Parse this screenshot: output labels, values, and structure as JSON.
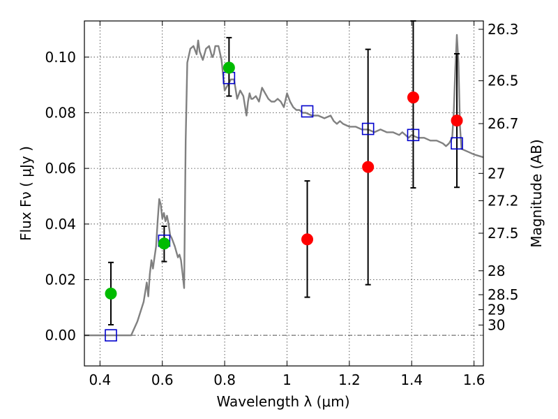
{
  "chart_data": {
    "type": "scatter",
    "xlabel": "Wavelength  λ (μm)",
    "ylabel": "Flux  Fν  ( μJy )",
    "ylabel_right": "Magnitude (AB)",
    "xlim": [
      0.35,
      1.63
    ],
    "ylim": [
      -0.011,
      0.113
    ],
    "x_ticks": [
      0.4,
      0.6,
      0.8,
      1.0,
      1.2,
      1.4,
      1.6
    ],
    "x_tick_labels": [
      "0.4",
      "0.6",
      "0.8",
      "1",
      "1.2",
      "1.4",
      "1.6"
    ],
    "y_ticks": [
      0.0,
      0.02,
      0.04,
      0.06,
      0.08,
      0.1
    ],
    "y_tick_labels": [
      "0.00",
      "0.02",
      "0.04",
      "0.06",
      "0.08",
      "0.10"
    ],
    "right_ticks": [
      {
        "label": "26.3",
        "flux": 0.11
      },
      {
        "label": "26.5",
        "flux": 0.0915
      },
      {
        "label": "26.7",
        "flux": 0.0761
      },
      {
        "label": "27",
        "flux": 0.0582
      },
      {
        "label": "27.2",
        "flux": 0.0484
      },
      {
        "label": "27.5",
        "flux": 0.0367
      },
      {
        "label": "28",
        "flux": 0.0232
      },
      {
        "label": "28.5",
        "flux": 0.0146
      },
      {
        "label": "29",
        "flux": 0.0092
      },
      {
        "label": "30",
        "flux": 0.0037
      }
    ],
    "grid": true,
    "colors": {
      "sed": "#808080",
      "detection": "#00bb00",
      "upper": "#ff0000",
      "model": "#0000cc",
      "errorbar": "#000000"
    },
    "observed_detected": [
      {
        "x": 0.435,
        "y": 0.015,
        "err_low": 0.0038,
        "err_high": 0.0262
      },
      {
        "x": 0.606,
        "y": 0.033,
        "err_low": 0.0265,
        "err_high": 0.0392
      },
      {
        "x": 0.814,
        "y": 0.0962,
        "err_low": 0.086,
        "err_high": 0.107
      }
    ],
    "observed_low_sn": [
      {
        "x": 1.065,
        "y": 0.0345,
        "err_low": 0.0137,
        "err_high": 0.0555
      },
      {
        "x": 1.26,
        "y": 0.0605,
        "err_low": 0.0182,
        "err_high": 0.1028
      },
      {
        "x": 1.405,
        "y": 0.0855,
        "err_low": 0.053,
        "err_high": 0.113
      },
      {
        "x": 1.545,
        "y": 0.0772,
        "err_low": 0.0532,
        "err_high": 0.1012
      }
    ],
    "model_photometry": [
      {
        "x": 0.435,
        "y": 0.0
      },
      {
        "x": 0.606,
        "y": 0.034
      },
      {
        "x": 0.814,
        "y": 0.0925
      },
      {
        "x": 1.065,
        "y": 0.0805
      },
      {
        "x": 1.26,
        "y": 0.0742
      },
      {
        "x": 1.405,
        "y": 0.072
      },
      {
        "x": 1.545,
        "y": 0.069
      }
    ],
    "sed_curve": [
      [
        0.35,
        0.0
      ],
      [
        0.5,
        0.0
      ],
      [
        0.52,
        0.005
      ],
      [
        0.54,
        0.012
      ],
      [
        0.55,
        0.019
      ],
      [
        0.555,
        0.014
      ],
      [
        0.56,
        0.022
      ],
      [
        0.565,
        0.027
      ],
      [
        0.57,
        0.024
      ],
      [
        0.575,
        0.028
      ],
      [
        0.58,
        0.032
      ],
      [
        0.585,
        0.041
      ],
      [
        0.59,
        0.049
      ],
      [
        0.595,
        0.047
      ],
      [
        0.6,
        0.042
      ],
      [
        0.605,
        0.044
      ],
      [
        0.61,
        0.041
      ],
      [
        0.615,
        0.043
      ],
      [
        0.62,
        0.04
      ],
      [
        0.625,
        0.036
      ],
      [
        0.63,
        0.035
      ],
      [
        0.64,
        0.032
      ],
      [
        0.65,
        0.028
      ],
      [
        0.655,
        0.029
      ],
      [
        0.66,
        0.027
      ],
      [
        0.665,
        0.022
      ],
      [
        0.67,
        0.017
      ],
      [
        0.675,
        0.07
      ],
      [
        0.68,
        0.098
      ],
      [
        0.69,
        0.103
      ],
      [
        0.7,
        0.104
      ],
      [
        0.71,
        0.101
      ],
      [
        0.715,
        0.106
      ],
      [
        0.72,
        0.102
      ],
      [
        0.73,
        0.099
      ],
      [
        0.74,
        0.103
      ],
      [
        0.75,
        0.104
      ],
      [
        0.76,
        0.1
      ],
      [
        0.765,
        0.101
      ],
      [
        0.77,
        0.104
      ],
      [
        0.78,
        0.104
      ],
      [
        0.79,
        0.099
      ],
      [
        0.8,
        0.088
      ],
      [
        0.81,
        0.09
      ],
      [
        0.82,
        0.092
      ],
      [
        0.83,
        0.092
      ],
      [
        0.84,
        0.085
      ],
      [
        0.85,
        0.088
      ],
      [
        0.86,
        0.086
      ],
      [
        0.87,
        0.079
      ],
      [
        0.875,
        0.084
      ],
      [
        0.88,
        0.087
      ],
      [
        0.885,
        0.085
      ],
      [
        0.89,
        0.085
      ],
      [
        0.9,
        0.086
      ],
      [
        0.91,
        0.084
      ],
      [
        0.92,
        0.089
      ],
      [
        0.93,
        0.087
      ],
      [
        0.94,
        0.085
      ],
      [
        0.95,
        0.084
      ],
      [
        0.96,
        0.084
      ],
      [
        0.97,
        0.085
      ],
      [
        0.98,
        0.084
      ],
      [
        0.99,
        0.082
      ],
      [
        1.0,
        0.087
      ],
      [
        1.01,
        0.084
      ],
      [
        1.02,
        0.082
      ],
      [
        1.03,
        0.081
      ],
      [
        1.04,
        0.081
      ],
      [
        1.05,
        0.08
      ],
      [
        1.06,
        0.08
      ],
      [
        1.08,
        0.079
      ],
      [
        1.1,
        0.079
      ],
      [
        1.12,
        0.078
      ],
      [
        1.14,
        0.079
      ],
      [
        1.15,
        0.077
      ],
      [
        1.16,
        0.076
      ],
      [
        1.17,
        0.077
      ],
      [
        1.18,
        0.076
      ],
      [
        1.2,
        0.075
      ],
      [
        1.22,
        0.075
      ],
      [
        1.24,
        0.074
      ],
      [
        1.26,
        0.074
      ],
      [
        1.28,
        0.073
      ],
      [
        1.3,
        0.074
      ],
      [
        1.32,
        0.073
      ],
      [
        1.34,
        0.073
      ],
      [
        1.36,
        0.072
      ],
      [
        1.37,
        0.073
      ],
      [
        1.38,
        0.072
      ],
      [
        1.39,
        0.071
      ],
      [
        1.4,
        0.072
      ],
      [
        1.42,
        0.071
      ],
      [
        1.44,
        0.071
      ],
      [
        1.46,
        0.07
      ],
      [
        1.48,
        0.07
      ],
      [
        1.5,
        0.069
      ],
      [
        1.51,
        0.068
      ],
      [
        1.52,
        0.069
      ],
      [
        1.53,
        0.071
      ],
      [
        1.535,
        0.08
      ],
      [
        1.54,
        0.096
      ],
      [
        1.545,
        0.108
      ],
      [
        1.55,
        0.098
      ],
      [
        1.555,
        0.075
      ],
      [
        1.56,
        0.067
      ],
      [
        1.58,
        0.066
      ],
      [
        1.6,
        0.065
      ],
      [
        1.63,
        0.064
      ]
    ],
    "zero_line": 0.0
  }
}
